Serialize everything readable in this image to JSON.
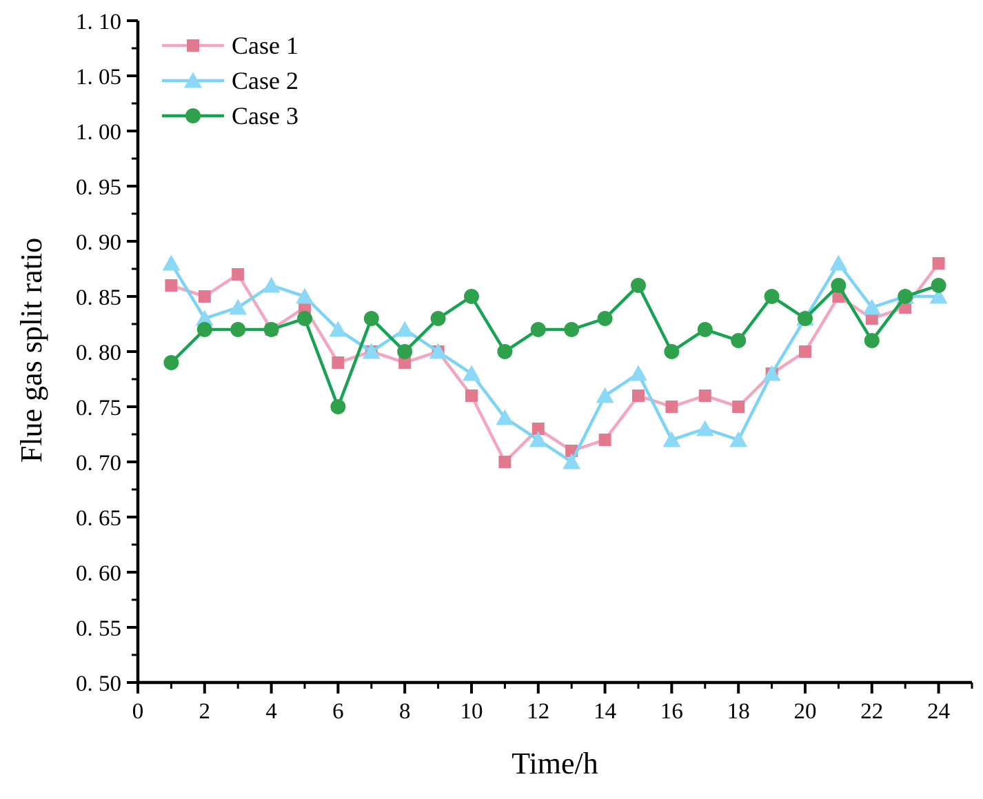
{
  "figure": {
    "background": "#ffffff",
    "axis_color": "#000000"
  },
  "chart_data": {
    "type": "line",
    "title": "",
    "xlabel": "Time/h",
    "ylabel": "Flue gas split ratio",
    "xlim": [
      0,
      25
    ],
    "ylim": [
      0.5,
      1.1
    ],
    "grid": false,
    "legend_position": "top-left-inside",
    "x": [
      1,
      2,
      3,
      4,
      5,
      6,
      7,
      8,
      9,
      10,
      11,
      12,
      13,
      14,
      15,
      16,
      17,
      18,
      19,
      20,
      21,
      22,
      23,
      24
    ],
    "series": [
      {
        "name": "Case 1",
        "marker": "square",
        "line_color": "#f2a7be",
        "marker_color": "#e2798e",
        "values": [
          0.86,
          0.85,
          0.87,
          0.82,
          0.84,
          0.79,
          0.8,
          0.79,
          0.8,
          0.76,
          0.7,
          0.73,
          0.71,
          0.72,
          0.76,
          0.75,
          0.76,
          0.75,
          0.78,
          0.8,
          0.85,
          0.83,
          0.84,
          0.88
        ]
      },
      {
        "name": "Case 2",
        "marker": "triangle-up",
        "line_color": "#7dd3f5",
        "marker_color": "#8bd8f7",
        "values": [
          0.88,
          0.83,
          0.84,
          0.86,
          0.85,
          0.82,
          0.8,
          0.82,
          0.8,
          0.78,
          0.74,
          0.72,
          0.7,
          0.76,
          0.78,
          0.72,
          0.73,
          0.72,
          0.78,
          0.83,
          0.88,
          0.84,
          0.85,
          0.85
        ]
      },
      {
        "name": "Case 3",
        "marker": "circle",
        "line_color": "#17a352",
        "marker_color": "#2fa14d",
        "values": [
          0.79,
          0.82,
          0.82,
          0.82,
          0.83,
          0.75,
          0.83,
          0.8,
          0.83,
          0.85,
          0.8,
          0.82,
          0.82,
          0.83,
          0.86,
          0.8,
          0.82,
          0.81,
          0.85,
          0.83,
          0.86,
          0.81,
          0.85,
          0.86
        ]
      }
    ],
    "x_ticks": {
      "major_values": [
        0,
        2,
        4,
        6,
        8,
        10,
        12,
        14,
        16,
        18,
        20,
        22,
        24
      ],
      "labels": [
        "0",
        "2",
        "4",
        "6",
        "8",
        "10",
        "12",
        "14",
        "16",
        "18",
        "20",
        "22",
        "24"
      ],
      "minor_values": [
        1,
        3,
        5,
        7,
        9,
        11,
        13,
        15,
        17,
        19,
        21,
        23,
        25
      ]
    },
    "y_ticks": {
      "major_values": [
        1.1,
        1.05,
        1.0,
        0.95,
        0.9,
        0.85,
        0.8,
        0.75,
        0.7,
        0.65,
        0.6,
        0.55,
        0.5
      ],
      "labels": [
        "1. 10",
        "1. 05",
        "1. 00",
        "0. 95",
        "0. 90",
        "0. 85",
        "0. 80",
        "0. 75",
        "0. 70",
        "0. 65",
        "0. 60",
        "0. 55",
        "0. 50"
      ],
      "minor_values": [
        1.075,
        1.025,
        0.975,
        0.925,
        0.875,
        0.825,
        0.775,
        0.725,
        0.675,
        0.625,
        0.575,
        0.525
      ]
    }
  }
}
